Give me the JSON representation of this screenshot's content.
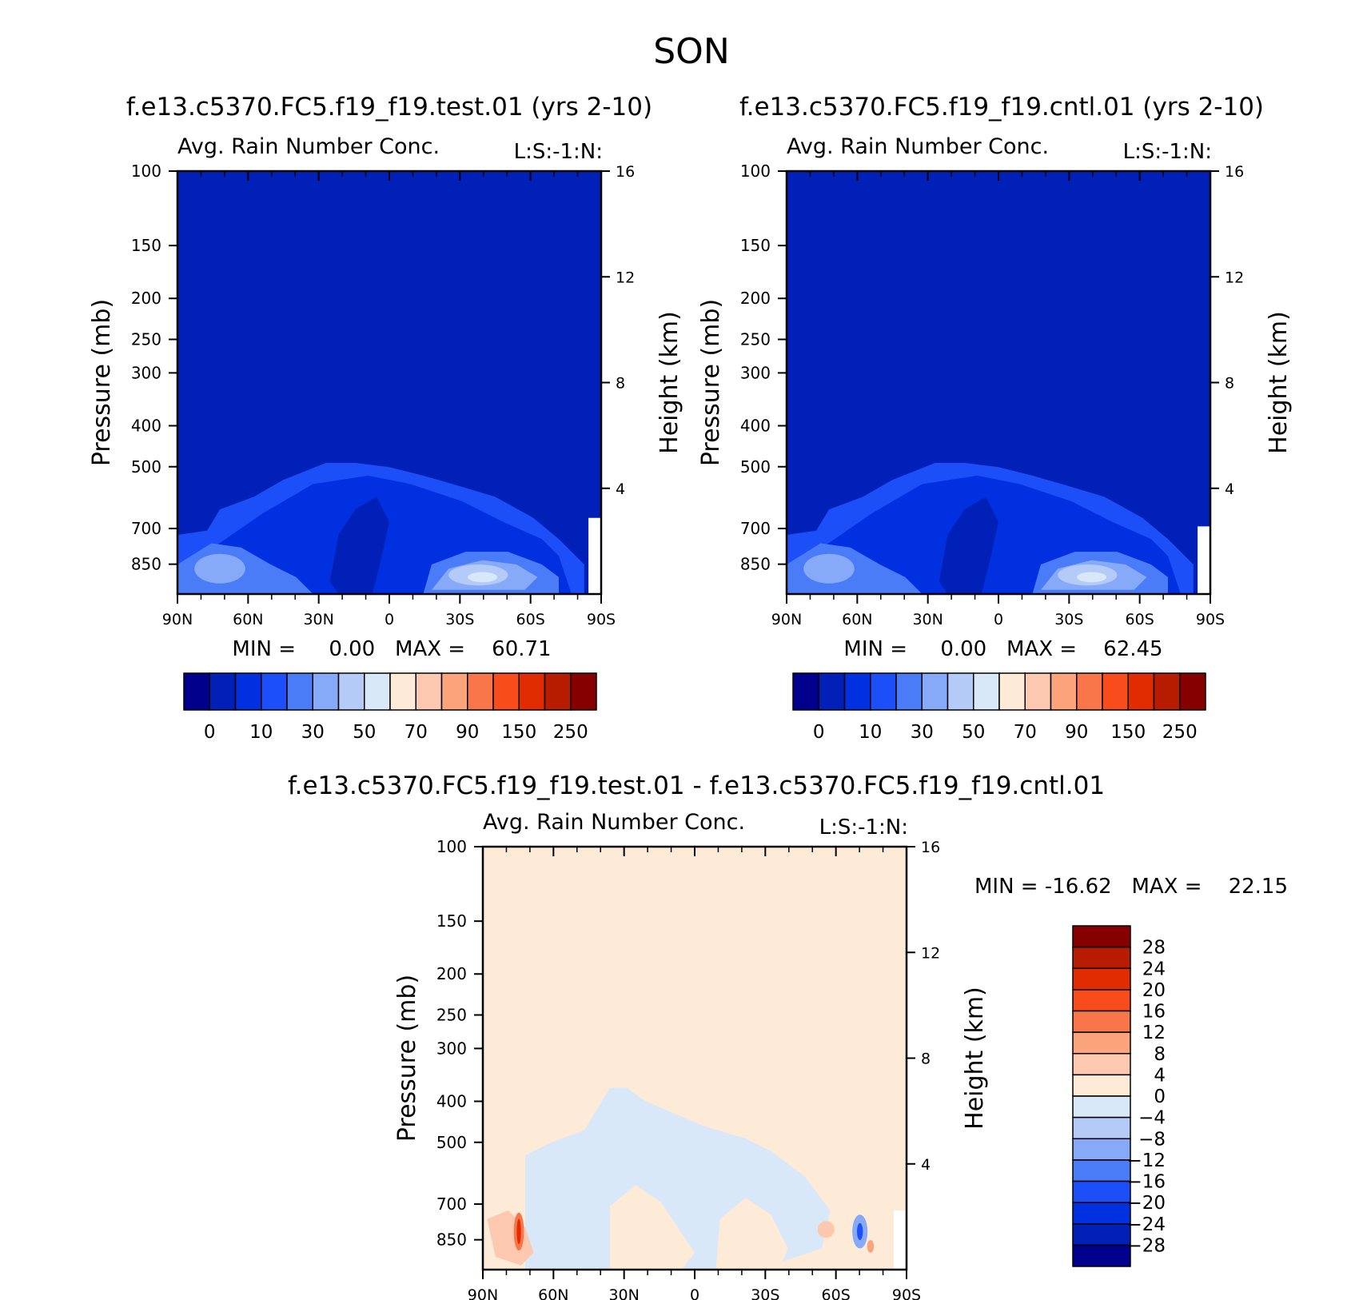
{
  "page_title": "SON",
  "labels": {
    "ylabel": "Pressure (mb)",
    "y2label": "Height (km)",
    "yticks": [
      "100",
      "150",
      "200",
      "250",
      "300",
      "400",
      "500",
      "700",
      "850"
    ],
    "y2ticks": [
      "16",
      "12",
      "8",
      "4"
    ],
    "xticks": [
      "90N",
      "60N",
      "30N",
      "0",
      "30S",
      "60S",
      "90S"
    ]
  },
  "colors": {
    "abs_levels_fill": [
      "#00008c",
      "#0020b8",
      "#0030e0",
      "#1c4ff8",
      "#4a7cf8",
      "#86a9f8",
      "#b4cbf8",
      "#d8e8f8",
      "#fdebd8",
      "#fdc8b0",
      "#fba47c",
      "#f8764a",
      "#f84c1c",
      "#e02c00",
      "#b81c00",
      "#860000"
    ],
    "diff_levels_fill": [
      "#860000",
      "#b81c00",
      "#e02c00",
      "#f84c1c",
      "#f8764a",
      "#fba47c",
      "#fdc8b0",
      "#fdebd8",
      "#d8e8f8",
      "#b4cbf8",
      "#86a9f8",
      "#4a7cf8",
      "#1c4ff8",
      "#0030e0",
      "#0020b8",
      "#00008c"
    ]
  },
  "chart_data": [
    {
      "type": "heatmap",
      "title": "f.e13.c5370.FC5.f19_f19.test.01 (yrs 2-10)",
      "subtitle": "Avg. Rain Number Conc.",
      "corner_label": "L:S:-1:N:",
      "xlabel": "",
      "ylabel": "Pressure (mb)",
      "y2label": "Height (km)",
      "xticks": [
        "90N",
        "60N",
        "30N",
        "0",
        "30S",
        "60S",
        "90S"
      ],
      "yticks": [
        "100",
        "150",
        "200",
        "250",
        "300",
        "400",
        "500",
        "700",
        "850"
      ],
      "y2ticks": [
        "16",
        "12",
        "8",
        "4"
      ],
      "ylim": [
        100,
        1000
      ],
      "y_scale": "log",
      "stats_text": "MIN =     0.00   MAX =    60.71",
      "min": 0.0,
      "max": 60.71,
      "colorbar_labels": [
        "0",
        "10",
        "30",
        "50",
        "70",
        "90",
        "150",
        "250"
      ]
    },
    {
      "type": "heatmap",
      "title": "f.e13.c5370.FC5.f19_f19.cntl.01 (yrs 2-10)",
      "subtitle": "Avg. Rain Number Conc.",
      "corner_label": "L:S:-1:N:",
      "xlabel": "",
      "ylabel": "Pressure (mb)",
      "y2label": "Height (km)",
      "xticks": [
        "90N",
        "60N",
        "30N",
        "0",
        "30S",
        "60S",
        "90S"
      ],
      "yticks": [
        "100",
        "150",
        "200",
        "250",
        "300",
        "400",
        "500",
        "700",
        "850"
      ],
      "y2ticks": [
        "16",
        "12",
        "8",
        "4"
      ],
      "ylim": [
        100,
        1000
      ],
      "y_scale": "log",
      "stats_text": "MIN =     0.00   MAX =    62.45",
      "min": 0.0,
      "max": 62.45,
      "colorbar_labels": [
        "0",
        "10",
        "30",
        "50",
        "70",
        "90",
        "150",
        "250"
      ]
    },
    {
      "type": "heatmap",
      "title": "f.e13.c5370.FC5.f19_f19.test.01 - f.e13.c5370.FC5.f19_f19.cntl.01",
      "subtitle": "Avg. Rain Number Conc.",
      "corner_label": "L:S:-1:N:",
      "xlabel": "",
      "ylabel": "Pressure (mb)",
      "y2label": "Height (km)",
      "xticks": [
        "90N",
        "60N",
        "30N",
        "0",
        "30S",
        "60S",
        "90S"
      ],
      "yticks": [
        "100",
        "150",
        "200",
        "250",
        "300",
        "400",
        "500",
        "700",
        "850"
      ],
      "y2ticks": [
        "16",
        "12",
        "8",
        "4"
      ],
      "ylim": [
        100,
        1000
      ],
      "y_scale": "log",
      "stats_text": "MIN = -16.62   MAX =    22.15",
      "min": -16.62,
      "max": 22.15,
      "colorbar_labels": [
        "28",
        "24",
        "20",
        "16",
        "12",
        "8",
        "4",
        "0",
        "-4",
        "-8",
        "-12",
        "-16",
        "-20",
        "-24",
        "-28"
      ]
    }
  ]
}
